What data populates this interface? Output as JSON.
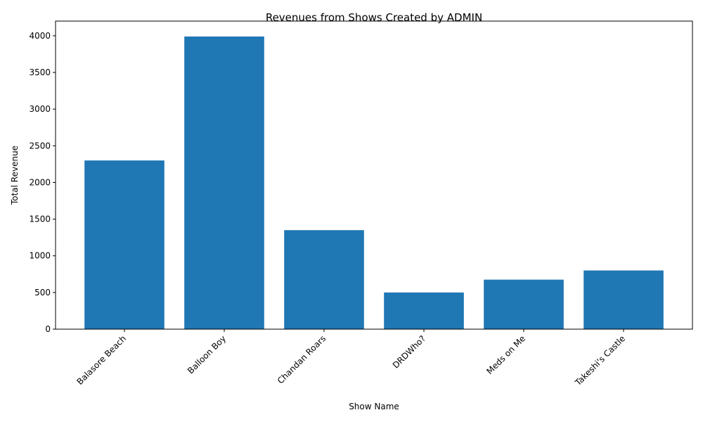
{
  "chart_data": {
    "type": "bar",
    "title": "Revenues from Shows Created by ADMIN",
    "xlabel": "Show Name",
    "ylabel": "Total Revenue",
    "categories": [
      "Balasore Beach",
      "Balloon Boy",
      "Chandan Roars",
      "DRDWho?",
      "Meds on Me",
      "Takeshi's Castle"
    ],
    "values": [
      2300,
      3990,
      1350,
      500,
      675,
      800
    ],
    "ylim": [
      0,
      4200
    ],
    "yticks": [
      0,
      500,
      1000,
      1500,
      2000,
      2500,
      3000,
      3500,
      4000
    ],
    "bar_color": "#1f77b4",
    "grid": false,
    "legend": false
  }
}
